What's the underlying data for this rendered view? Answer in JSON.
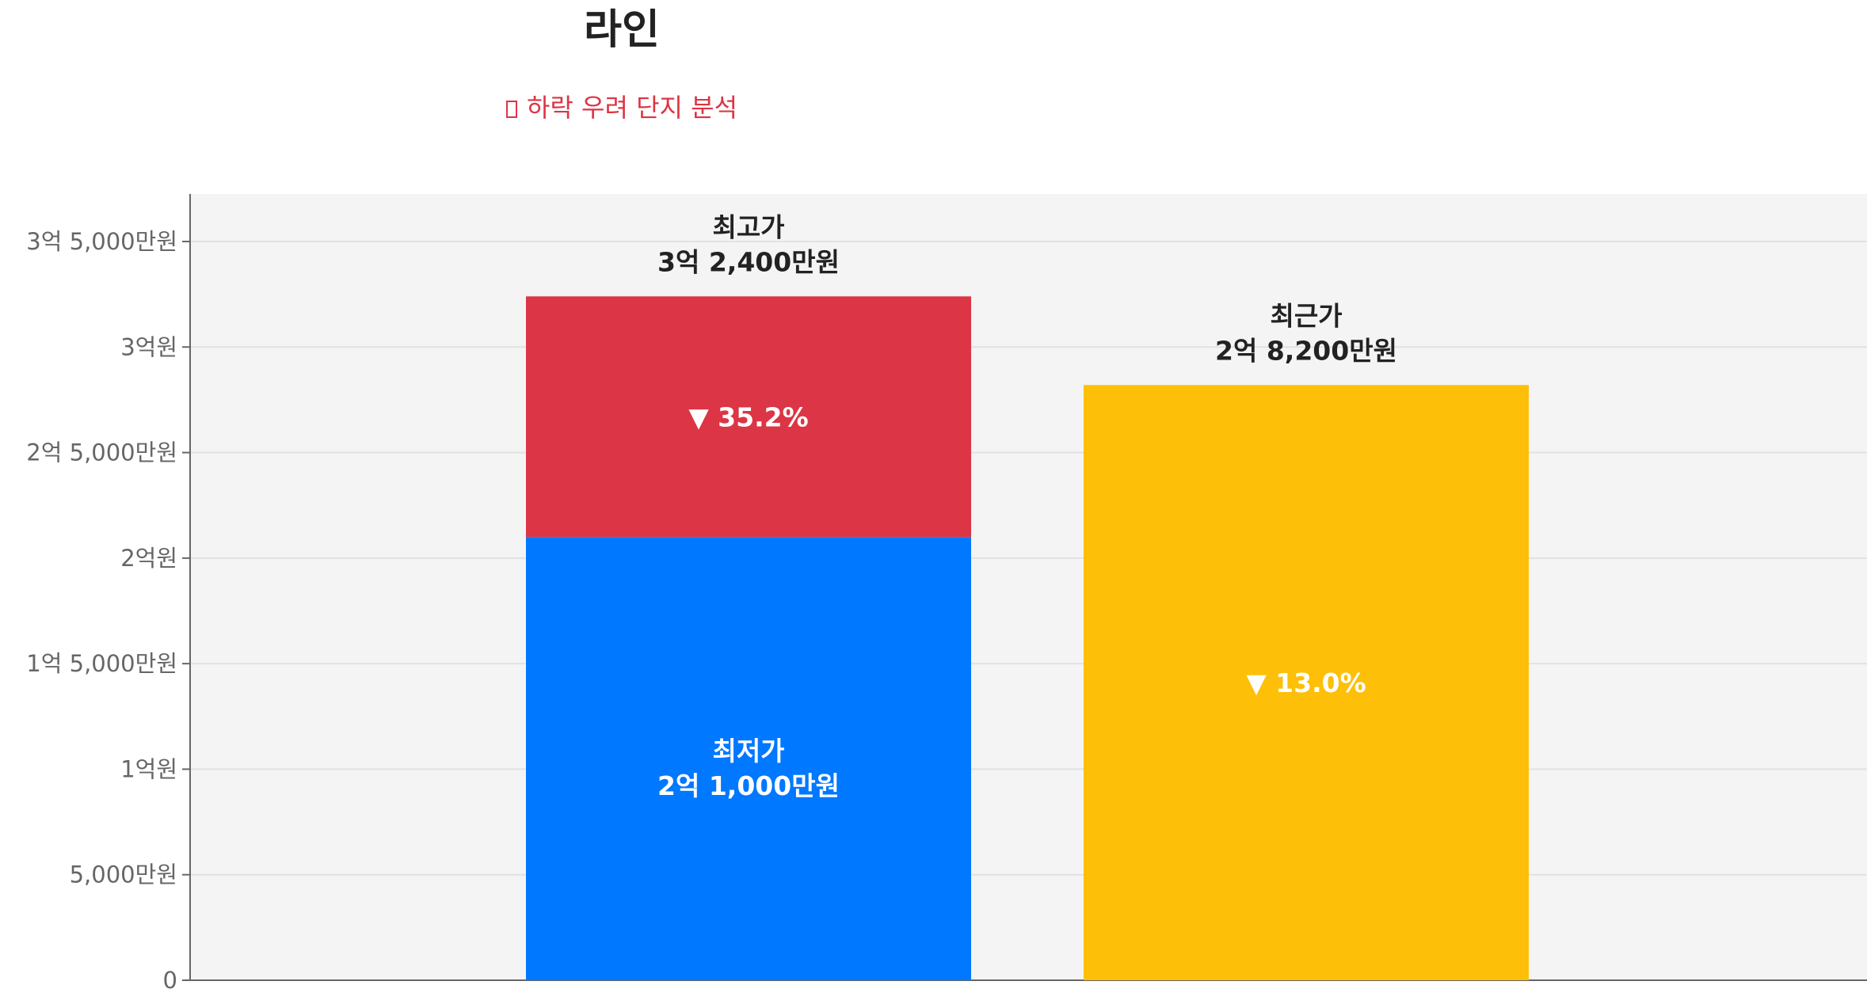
{
  "title": "라인",
  "subtitle": {
    "icon": "red-flag-icon",
    "text": "하락 우려 단지 분석"
  },
  "colors": {
    "min_bar": "#0078ff",
    "drop_bar": "#dc3545",
    "recent_bar": "#fdbf07",
    "plot_bg": "#f4f4f4"
  },
  "chart_data": {
    "type": "bar",
    "categories": [
      "최고가/최저가",
      "최근가"
    ],
    "ylim": [
      0,
      350000000
    ],
    "yticks": [
      {
        "value": 0,
        "label": "0"
      },
      {
        "value": 50000000,
        "label": "5,000만원"
      },
      {
        "value": 100000000,
        "label": "1억원"
      },
      {
        "value": 150000000,
        "label": "1억 5,000만원"
      },
      {
        "value": 200000000,
        "label": "2억원"
      },
      {
        "value": 250000000,
        "label": "2억 5,000만원"
      },
      {
        "value": 300000000,
        "label": "3억원"
      },
      {
        "value": 350000000,
        "label": "3억 5,000만원"
      }
    ],
    "bars": [
      {
        "name": "최저가",
        "value": 210000000,
        "value_label": "2억 1,000만원",
        "color": "#0078ff"
      },
      {
        "name": "최고가",
        "value": 324000000,
        "value_label": "3억 2,400만원",
        "drop_label": "▼ 35.2%",
        "color": "#dc3545"
      },
      {
        "name": "최근가",
        "value": 282000000,
        "value_label": "2억 8,200만원",
        "drop_label": "▼ 13.0%",
        "color": "#fdbf07"
      }
    ],
    "grid": true
  }
}
